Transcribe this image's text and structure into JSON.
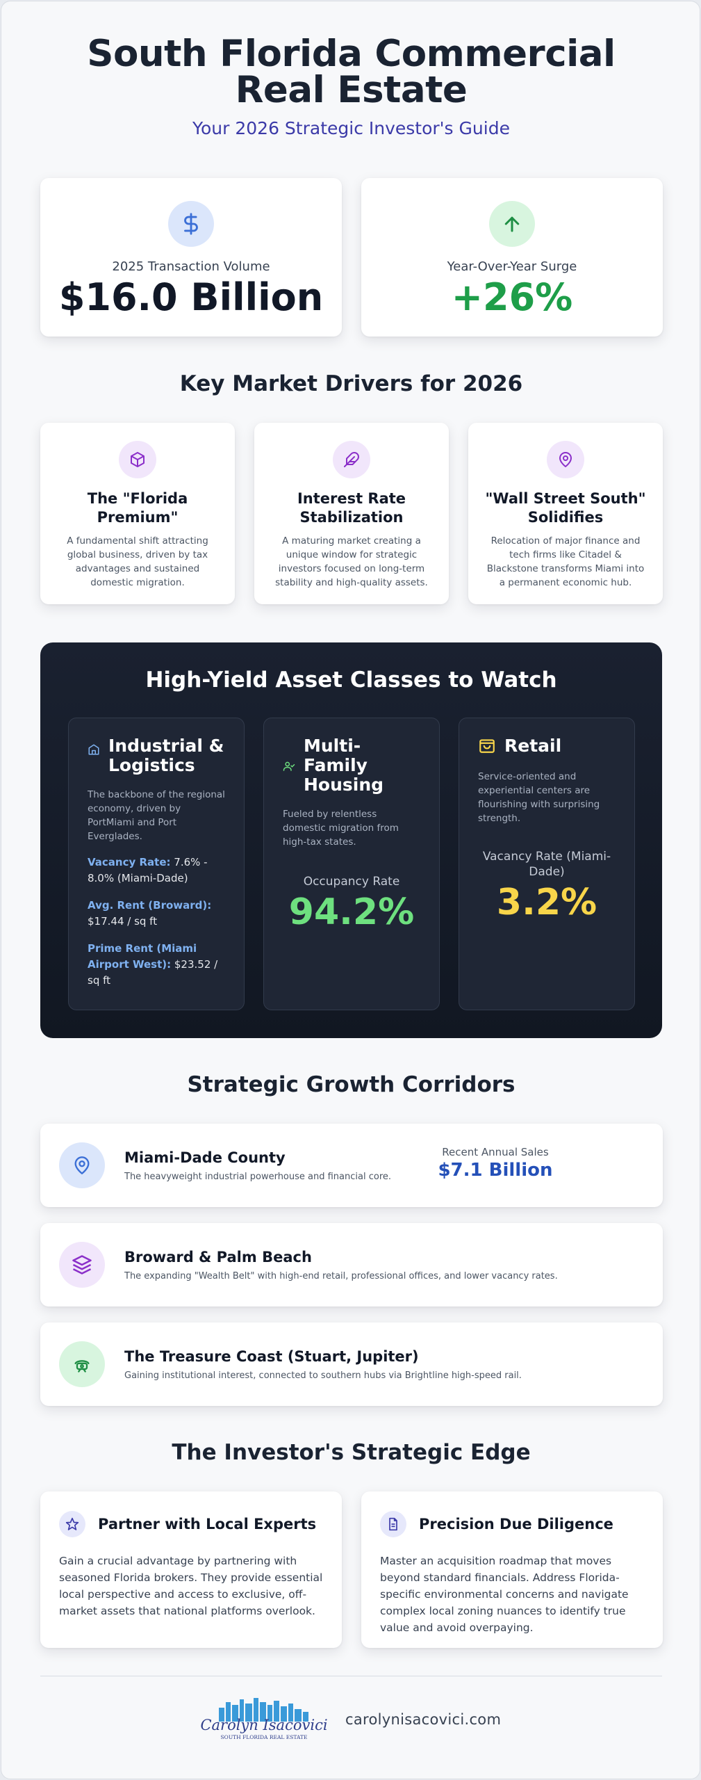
{
  "header": {
    "title": "South Florida Commercial Real Estate",
    "subtitle": "Your 2026 Strategic Investor's Guide"
  },
  "stats": [
    {
      "label": "2025 Transaction Volume",
      "value": "$16.0 Billion",
      "icon": "dollar-icon",
      "color": "#111827"
    },
    {
      "label": "Year-Over-Year Surge",
      "value": "+26%",
      "icon": "arrow-up-icon",
      "color": "#1e9e49"
    }
  ],
  "drivers": {
    "title": "Key Market Drivers for 2026",
    "items": [
      {
        "title": "The \"Florida Premium\"",
        "icon": "cube-icon",
        "text": "A fundamental shift attracting global business, driven by tax advantages and sustained domestic migration."
      },
      {
        "title": "Interest Rate Stabilization",
        "icon": "feather-icon",
        "text": "A maturing market creating a unique window for strategic investors focused on long-term stability and high-quality assets."
      },
      {
        "title": "\"Wall Street South\" Solidifies",
        "icon": "map-pin-icon",
        "text": "Relocation of major finance and tech firms like Citadel & Blackstone transforms Miami into a permanent economic hub."
      }
    ]
  },
  "assets": {
    "title": "High-Yield Asset Classes to Watch",
    "industrial": {
      "title": "Industrial & Logistics",
      "icon": "warehouse-icon",
      "desc": "The backbone of the regional economy, driven by PortMiami and Port Everglades.",
      "stats": [
        {
          "k": "Vacancy Rate:",
          "v": " 7.6% - 8.0% (Miami-Dade)"
        },
        {
          "k": "Avg. Rent (Broward):",
          "v": " $17.44 / sq ft"
        },
        {
          "k": "Prime Rent (Miami Airport West):",
          "v": " $23.52 / sq ft"
        }
      ]
    },
    "multifamily": {
      "title": "Multi-Family Housing",
      "icon": "users-icon",
      "desc": "Fueled by relentless domestic migration from high-tax states.",
      "metric_label": "Occupancy Rate",
      "metric_value": "94.2%",
      "color": "#6ee07f"
    },
    "retail": {
      "title": "Retail",
      "icon": "shopping-bag-icon",
      "desc": "Service-oriented and experiential centers are flourishing with surprising strength.",
      "metric_label": "Vacancy Rate (Miami-Dade)",
      "metric_value": "3.2%",
      "color": "#f8d54a"
    }
  },
  "corridors": {
    "title": "Strategic Growth Corridors",
    "items": [
      {
        "name": "Miami-Dade County",
        "desc": "The heavyweight industrial powerhouse and financial core.",
        "icon": "map-pin-icon",
        "sales_label": "Recent Annual Sales",
        "sales_value": "$7.1 Billion"
      },
      {
        "name": "Broward & Palm Beach",
        "desc": "The expanding \"Wealth Belt\" with high-end retail, professional offices, and lower vacancy rates.",
        "icon": "layers-icon"
      },
      {
        "name": "The Treasure Coast (Stuart, Jupiter)",
        "desc": "Gaining institutional interest, connected to southern hubs via Brightline high-speed rail.",
        "icon": "train-icon"
      }
    ]
  },
  "edge": {
    "title": "The Investor's Strategic Edge",
    "items": [
      {
        "title": "Partner with Local Experts",
        "icon": "star-icon",
        "text": "Gain a crucial advantage by partnering with seasoned Florida brokers. They provide essential local perspective and access to exclusive, off-market assets that national platforms overlook."
      },
      {
        "title": "Precision Due Diligence",
        "icon": "document-icon",
        "text": "Master an acquisition roadmap that moves beyond standard financials. Address Florida-specific environmental concerns and navigate complex local zoning nuances to identify true value and avoid overpaying."
      }
    ]
  },
  "footer": {
    "logo_name": "Carolyn Isacovici",
    "logo_tagline": "SOUTH FLORIDA REAL ESTATE",
    "website": "carolynisacovici.com"
  }
}
